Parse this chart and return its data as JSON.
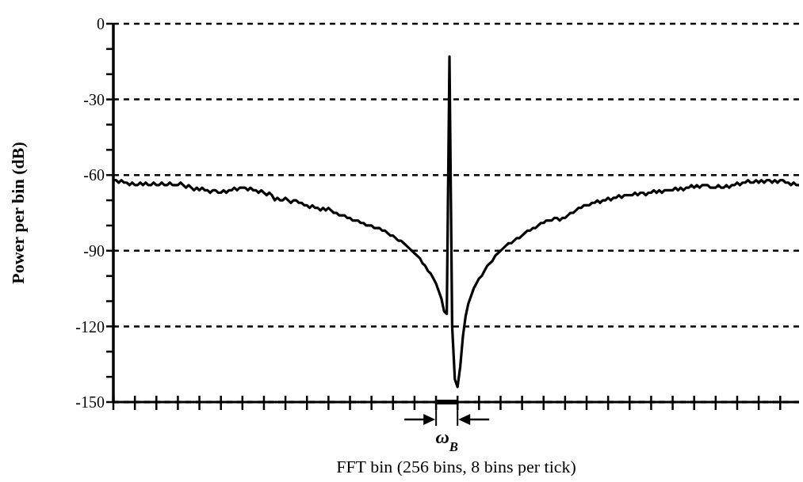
{
  "chart_data": {
    "type": "line",
    "xlabel": "FFT bin (256 bins, 8 bins per tick)",
    "ylabel": "Power per bin (dB)",
    "annotations": [
      "ω$_{B}$"
    ],
    "categories": [
      null,
      null,
      null,
      null,
      null,
      null,
      null,
      null,
      null,
      null,
      null,
      null,
      null,
      null,
      null,
      null,
      null,
      null,
      null,
      null,
      null,
      null,
      null,
      null,
      null,
      null,
      null,
      null,
      null,
      null,
      null,
      null,
      null,
      null,
      null,
      null,
      null,
      null,
      null,
      null,
      null,
      null,
      null,
      null,
      null,
      null,
      null,
      null,
      null,
      null,
      null,
      null,
      null,
      null,
      null,
      null,
      null,
      null,
      null,
      null,
      null,
      null,
      null,
      null,
      null,
      null,
      null,
      null,
      null,
      null,
      null,
      null,
      null,
      null,
      null,
      null,
      null,
      null,
      null,
      null,
      null,
      null,
      null,
      null,
      null,
      null,
      null,
      null,
      null,
      null,
      null,
      null,
      null,
      null,
      null,
      null,
      null,
      null,
      null,
      null,
      null,
      null,
      null,
      null,
      null,
      null,
      null,
      null,
      null,
      null,
      null,
      null,
      null,
      null,
      null,
      null,
      null,
      null,
      null,
      null,
      null,
      null,
      null,
      null,
      null,
      null,
      null,
      null,
      null,
      null,
      null,
      null,
      null,
      null,
      null,
      null,
      null,
      null,
      null,
      null,
      null,
      null,
      null,
      null,
      null,
      null,
      null,
      null,
      null,
      null,
      null,
      null,
      null,
      null,
      null,
      null,
      null,
      null,
      null,
      null,
      null,
      null,
      null,
      null,
      null,
      null,
      null,
      null,
      null,
      null,
      null,
      null,
      null,
      null,
      null,
      null,
      null,
      null,
      null,
      null,
      null,
      null,
      null,
      null,
      null,
      null,
      null,
      null,
      null,
      null,
      null,
      null,
      null,
      null,
      null,
      null,
      null,
      null,
      null,
      null,
      null,
      null,
      null,
      null,
      null,
      null,
      null,
      null,
      null,
      null,
      null,
      null,
      null,
      null,
      null,
      null,
      null,
      null,
      null,
      null,
      null,
      null,
      null,
      null,
      null,
      null,
      null,
      null,
      null,
      null,
      null,
      null,
      null,
      null,
      null,
      null,
      null,
      null,
      null,
      null,
      null,
      null,
      null,
      null,
      null,
      null,
      null,
      null,
      null,
      null,
      null,
      null,
      null,
      null,
      null,
      null
    ],
    "series": [
      {
        "color": "#000000",
        "values": [
          -62,
          -62,
          -63,
          -62,
          -63,
          -63,
          -64,
          -63,
          -64,
          -64,
          -63,
          -64,
          -63,
          -64,
          -64,
          -63,
          -64,
          -64,
          -63,
          -64,
          -64,
          -63,
          -64,
          -64,
          -64,
          -63,
          -64,
          -65,
          -64,
          -65,
          -66,
          -65,
          -66,
          -65,
          -66,
          -66,
          -67,
          -66,
          -66,
          -67,
          -67,
          -66,
          -67,
          -66,
          -66,
          -65,
          -66,
          -65,
          -65,
          -65,
          -66,
          -65,
          -66,
          -66,
          -67,
          -66,
          -67,
          -68,
          -67,
          -68,
          -70,
          -69,
          -70,
          -70,
          -69,
          -70,
          -71,
          -70,
          -70,
          -71,
          -71,
          -72,
          -72,
          -73,
          -72,
          -73,
          -73,
          -74,
          -73,
          -74,
          -73,
          -74,
          -75,
          -75,
          -76,
          -76,
          -76,
          -77,
          -77,
          -78,
          -78,
          -78,
          -79,
          -79,
          -80,
          -80,
          -80,
          -81,
          -81,
          -81,
          -82,
          -82,
          -83,
          -84,
          -84,
          -85,
          -86,
          -86,
          -87,
          -88,
          -89,
          -90,
          -91,
          -92,
          -93,
          -95,
          -96,
          -98,
          -99,
          -101,
          -103,
          -106,
          -109,
          -114,
          -115,
          -13,
          -120,
          -141,
          -144,
          -136,
          -124,
          -116,
          -111,
          -108,
          -105,
          -103,
          -101,
          -100,
          -98,
          -96,
          -95,
          -94,
          -92,
          -91,
          -90,
          -89,
          -88,
          -87,
          -87,
          -86,
          -85,
          -85,
          -84,
          -83,
          -82,
          -82,
          -81,
          -81,
          -80,
          -79,
          -79,
          -78,
          -78,
          -78,
          -77,
          -77,
          -78,
          -77,
          -77,
          -76,
          -75,
          -75,
          -74,
          -73,
          -73,
          -72,
          -72,
          -72,
          -71,
          -71,
          -70,
          -71,
          -70,
          -70,
          -69,
          -70,
          -69,
          -69,
          -68,
          -69,
          -68,
          -68,
          -68,
          -68,
          -67,
          -68,
          -67,
          -67,
          -68,
          -67,
          -67,
          -66,
          -67,
          -66,
          -67,
          -66,
          -66,
          -66,
          -66,
          -65,
          -66,
          -65,
          -66,
          -65,
          -65,
          -64,
          -65,
          -64,
          -65,
          -64,
          -64,
          -64,
          -65,
          -65,
          -65,
          -64,
          -65,
          -65,
          -64,
          -65,
          -64,
          -64,
          -63,
          -64,
          -63,
          -63,
          -62,
          -63,
          -63,
          -62,
          -63,
          -62,
          -63,
          -62,
          -62,
          -63,
          -62,
          -63,
          -62,
          -62,
          -63,
          -63,
          -64,
          -63,
          -64,
          -64
        ]
      }
    ],
    "ylim": [
      -150,
      0
    ],
    "yticks": [
      -150,
      {
        "value": -140,
        "label": null
      },
      {
        "value": -130,
        "label": null
      },
      -120,
      {
        "value": -110,
        "label": null
      },
      {
        "value": -100,
        "label": null
      },
      -90,
      {
        "value": -80,
        "label": null
      },
      {
        "value": -70,
        "label": null
      },
      -60,
      {
        "value": -50,
        "label": null
      },
      {
        "value": -40,
        "label": null
      },
      -30,
      {
        "value": -20,
        "label": null
      },
      {
        "value": -10,
        "label": null
      },
      0
    ],
    "grid": "y",
    "line_style": "solid",
    "marker": "none"
  }
}
